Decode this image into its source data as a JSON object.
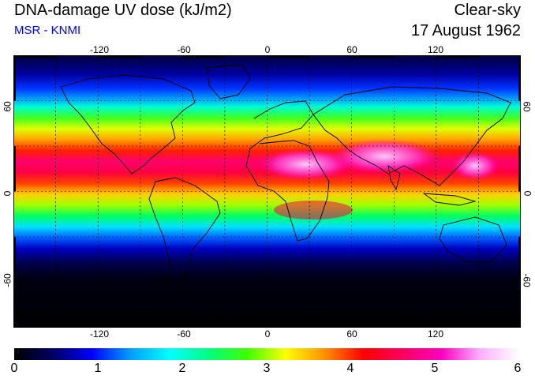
{
  "header": {
    "title": "DNA-damage UV dose (kJ/m2)",
    "source": "MSR - KNMI",
    "condition": "Clear-sky",
    "date": "17 August 1962"
  },
  "axes": {
    "lon_top": [
      "-120",
      "-60",
      "0",
      "60",
      "120"
    ],
    "lon_bottom": [
      "-120",
      "-60",
      "0",
      "60",
      "120"
    ],
    "lat_left": [
      "60",
      "0",
      "-60"
    ],
    "lat_right": [
      "60",
      "0",
      "-60"
    ]
  },
  "colorbar": {
    "ticks": [
      "0",
      "1",
      "2",
      "3",
      "4",
      "5",
      "6"
    ],
    "colors": [
      "#000000",
      "#000064",
      "#0000ff",
      "#00a0ff",
      "#00ffff",
      "#00ff80",
      "#40ff00",
      "#ffff00",
      "#ff9000",
      "#ff0000",
      "#ff0060",
      "#ff00c0",
      "#ffb0ff",
      "#ffffff"
    ]
  },
  "map_bands": {
    "lat_dose_kj_m2": [
      [
        90,
        0.6
      ],
      [
        75,
        1.0
      ],
      [
        65,
        1.9
      ],
      [
        55,
        2.9
      ],
      [
        45,
        3.6
      ],
      [
        35,
        4.6
      ],
      [
        25,
        5.2
      ],
      [
        15,
        5.0
      ],
      [
        5,
        4.3
      ],
      [
        -5,
        3.7
      ],
      [
        -15,
        2.9
      ],
      [
        -25,
        1.9
      ],
      [
        -35,
        1.0
      ],
      [
        -45,
        0.4
      ],
      [
        -55,
        0.1
      ],
      [
        -90,
        0.0
      ]
    ]
  }
}
